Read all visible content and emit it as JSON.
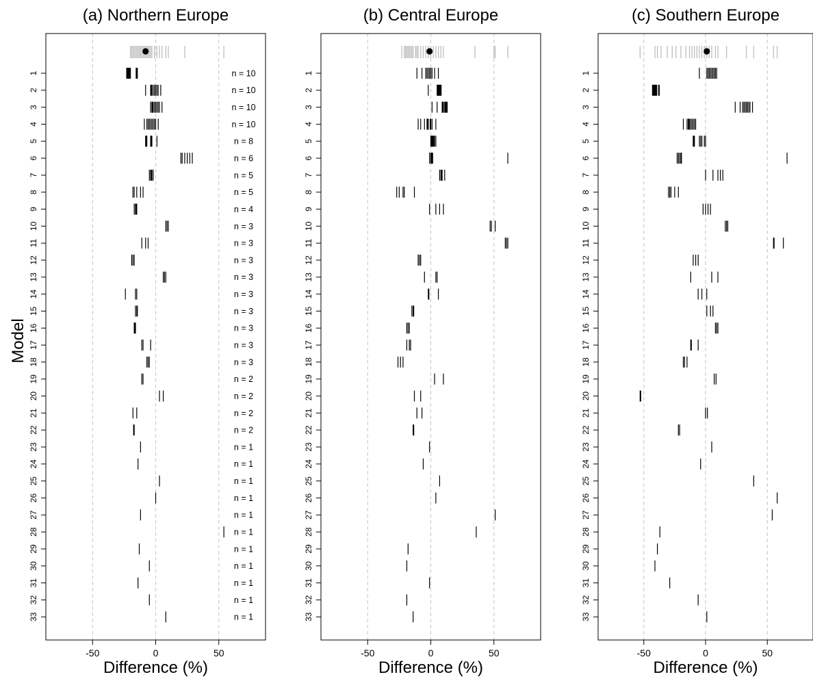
{
  "figure": {
    "ylabel": "Model",
    "xlabel": "Difference (%)"
  },
  "chart_data": [
    {
      "type": "scatter",
      "mark": "vertical-tick",
      "title": "(a) Northern Europe",
      "xlabel": "Difference (%)",
      "ylabel": "Model",
      "xlim": [
        -87,
        87
      ],
      "x_ticks": [
        -50,
        0,
        50
      ],
      "gridlines_x": [
        -50,
        0,
        50
      ],
      "grid_color": "#cccccc",
      "tick_color": "#000000",
      "pooled_color": "#bdbdbd",
      "models": [
        "1",
        "2",
        "3",
        "4",
        "5",
        "6",
        "7",
        "8",
        "9",
        "10",
        "11",
        "12",
        "13",
        "14",
        "15",
        "16",
        "17",
        "18",
        "19",
        "20",
        "21",
        "22",
        "23",
        "24",
        "25",
        "26",
        "27",
        "28",
        "29",
        "30",
        "31",
        "32",
        "33"
      ],
      "n_labels": [
        "n = 10",
        "n = 10",
        "n = 10",
        "n = 10",
        "n = 8",
        "n = 6",
        "n = 5",
        "n = 5",
        "n = 4",
        "n = 3",
        "n = 3",
        "n = 3",
        "n = 3",
        "n = 3",
        "n = 3",
        "n = 3",
        "n = 3",
        "n = 3",
        "n = 2",
        "n = 2",
        "n = 2",
        "n = 2",
        "n = 1",
        "n = 1",
        "n = 1",
        "n = 1",
        "n = 1",
        "n = 1",
        "n = 1",
        "n = 1",
        "n = 1",
        "n = 1",
        "n = 1"
      ],
      "pooled": {
        "mean": -8,
        "values": [
          -20,
          -19,
          -18,
          -17,
          -16,
          -15,
          -14,
          -13,
          -12,
          -11,
          -10,
          -9,
          -8,
          -7,
          -6,
          -5,
          -4,
          -3,
          -1,
          1,
          3,
          5,
          8,
          10,
          23,
          54
        ]
      },
      "series": [
        [
          -23,
          -22,
          -21,
          -20,
          -15,
          -14.5,
          -22.5,
          -21.5,
          -20.5,
          -15.5
        ],
        [
          -8,
          -4,
          -3,
          -2,
          -1,
          0,
          1,
          2,
          4,
          -3.5
        ],
        [
          -4,
          -3,
          -2,
          -1,
          0,
          1,
          2,
          3,
          5,
          -2.5
        ],
        [
          -9,
          -7,
          -6,
          -5,
          -4,
          -3,
          -2,
          -1,
          0,
          2
        ],
        [
          -8,
          -7.5,
          -7,
          -4,
          -3.5,
          1,
          -3,
          -7.2
        ],
        [
          20,
          21,
          23,
          25,
          27,
          29
        ],
        [
          -5,
          -4,
          -3,
          -2,
          -3.5
        ],
        [
          -18,
          -17,
          -15,
          -12,
          -10
        ],
        [
          -17,
          -16,
          -15.5,
          -15
        ],
        [
          8,
          9,
          10
        ],
        [
          -11,
          -8,
          -6
        ],
        [
          -19,
          -18,
          -17
        ],
        [
          6,
          7,
          8
        ],
        [
          -24,
          -16,
          -15
        ],
        [
          -16,
          -15,
          -14.5
        ],
        [
          -17,
          -16.5,
          -16
        ],
        [
          -11,
          -10,
          -4
        ],
        [
          -7,
          -6,
          -5
        ],
        [
          -11,
          -10
        ],
        [
          3,
          6
        ],
        [
          -18,
          -15
        ],
        [
          -17.5,
          -17
        ],
        [
          -12
        ],
        [
          -14
        ],
        [
          3
        ],
        [
          0
        ],
        [
          -12
        ],
        [
          54
        ],
        [
          -13
        ],
        [
          -5
        ],
        [
          -14
        ],
        [
          -5
        ],
        [
          8
        ]
      ]
    },
    {
      "type": "scatter",
      "mark": "vertical-tick",
      "title": "(b) Central Europe",
      "xlabel": "Difference (%)",
      "ylabel": "",
      "xlim": [
        -87,
        87
      ],
      "x_ticks": [
        -50,
        0,
        50
      ],
      "gridlines_x": [
        -50,
        0,
        50
      ],
      "models": [
        "1",
        "2",
        "3",
        "4",
        "5",
        "6",
        "7",
        "8",
        "9",
        "10",
        "11",
        "12",
        "13",
        "14",
        "15",
        "16",
        "17",
        "18",
        "19",
        "20",
        "21",
        "22",
        "23",
        "24",
        "25",
        "26",
        "27",
        "28",
        "29",
        "30",
        "31",
        "32",
        "33"
      ],
      "pooled": {
        "mean": -1,
        "values": [
          -23,
          -21,
          -20,
          -19,
          -18,
          -17,
          -16,
          -15,
          -14,
          -12,
          -11,
          -10,
          -8,
          -6,
          -4,
          -2,
          0,
          2,
          4,
          6,
          8,
          10,
          35,
          50,
          51,
          61
        ]
      },
      "series": [
        [
          -11,
          -7,
          -4,
          -3,
          -2,
          -1,
          0,
          1,
          3,
          6
        ],
        [
          -2,
          5,
          6,
          7,
          8,
          6.5,
          7.5,
          5.5,
          6.2,
          8.2
        ],
        [
          1,
          5,
          9,
          10,
          11,
          12,
          13,
          9.5,
          11.5,
          12.5
        ],
        [
          -10,
          -8,
          -5,
          -3,
          -2,
          0,
          1,
          4,
          -0.5,
          -2.5
        ],
        [
          0,
          1,
          2,
          3,
          4,
          1.5,
          2.5,
          0.5
        ],
        [
          -1,
          0,
          0.5,
          1,
          1.5,
          61
        ],
        [
          7,
          8,
          9,
          11,
          8.5
        ],
        [
          -27,
          -25,
          -22,
          -21,
          -13
        ],
        [
          -1,
          4,
          7,
          10
        ],
        [
          47,
          48,
          51
        ],
        [
          59,
          60,
          61
        ],
        [
          -10,
          -9,
          -8
        ],
        [
          -5,
          4,
          5
        ],
        [
          -2,
          -1.5,
          6
        ],
        [
          -15,
          -14,
          -13.5
        ],
        [
          -19,
          -18,
          -17
        ],
        [
          -19,
          -17,
          -16
        ],
        [
          -26,
          -24,
          -22
        ],
        [
          3,
          10
        ],
        [
          -13,
          -8
        ],
        [
          -11,
          -7
        ],
        [
          -14,
          -13.5
        ],
        [
          -1
        ],
        [
          -6
        ],
        [
          7
        ],
        [
          4
        ],
        [
          51
        ],
        [
          36
        ],
        [
          -18
        ],
        [
          -19
        ],
        [
          -1
        ],
        [
          -19
        ],
        [
          -14
        ]
      ]
    },
    {
      "type": "scatter",
      "mark": "vertical-tick",
      "title": "(c) Southern Europe",
      "xlabel": "Difference (%)",
      "ylabel": "",
      "xlim": [
        -87,
        87
      ],
      "x_ticks": [
        -50,
        0,
        50
      ],
      "gridlines_x": [
        -50,
        0,
        50
      ],
      "models": [
        "1",
        "2",
        "3",
        "4",
        "5",
        "6",
        "7",
        "8",
        "9",
        "10",
        "11",
        "12",
        "13",
        "14",
        "15",
        "16",
        "17",
        "18",
        "19",
        "20",
        "21",
        "22",
        "23",
        "24",
        "25",
        "26",
        "27",
        "28",
        "29",
        "30",
        "31",
        "32",
        "33"
      ],
      "pooled": {
        "mean": 1,
        "values": [
          -53,
          -41,
          -39,
          -36,
          -31,
          -27,
          -24,
          -20,
          -16,
          -13,
          -11,
          -9,
          -7,
          -5,
          -3,
          -1,
          1,
          3,
          5,
          8,
          10,
          17,
          33,
          39,
          55,
          58
        ]
      },
      "series": [
        [
          -5,
          1,
          2,
          3,
          4,
          5,
          6,
          7,
          8,
          9
        ],
        [
          -43,
          -42,
          -41,
          -40,
          -38,
          -42.5,
          -41.5,
          -40.5,
          -39.5,
          -37.5
        ],
        [
          24,
          28,
          30,
          31,
          32,
          33,
          34,
          35,
          36,
          38
        ],
        [
          -18,
          -15,
          -14,
          -13,
          -12,
          -11,
          -10,
          -9,
          -8,
          -13.5
        ],
        [
          -10,
          -9.5,
          -9,
          -5,
          -3,
          -1,
          0,
          -4
        ],
        [
          -23,
          -22,
          -20,
          -19.5,
          -21,
          66
        ],
        [
          0,
          6,
          10,
          12,
          14
        ],
        [
          -30,
          -28,
          -25,
          -22,
          -29
        ],
        [
          -2,
          0,
          2,
          4
        ],
        [
          16,
          17,
          18
        ],
        [
          55,
          55.5,
          63
        ],
        [
          -10,
          -8,
          -6
        ],
        [
          -12,
          5,
          10
        ],
        [
          -6,
          -3,
          1
        ],
        [
          1,
          4,
          6
        ],
        [
          8,
          9,
          10
        ],
        [
          -12,
          -11.5,
          -6
        ],
        [
          -18,
          -17,
          -15
        ],
        [
          7,
          8.5
        ],
        [
          -53,
          -52.5
        ],
        [
          0,
          1.5
        ],
        [
          -22,
          -21
        ],
        [
          5
        ],
        [
          -4
        ],
        [
          39
        ],
        [
          58
        ],
        [
          54
        ],
        [
          -37
        ],
        [
          -39
        ],
        [
          -41
        ],
        [
          -29
        ],
        [
          -6
        ],
        [
          1
        ]
      ]
    }
  ]
}
